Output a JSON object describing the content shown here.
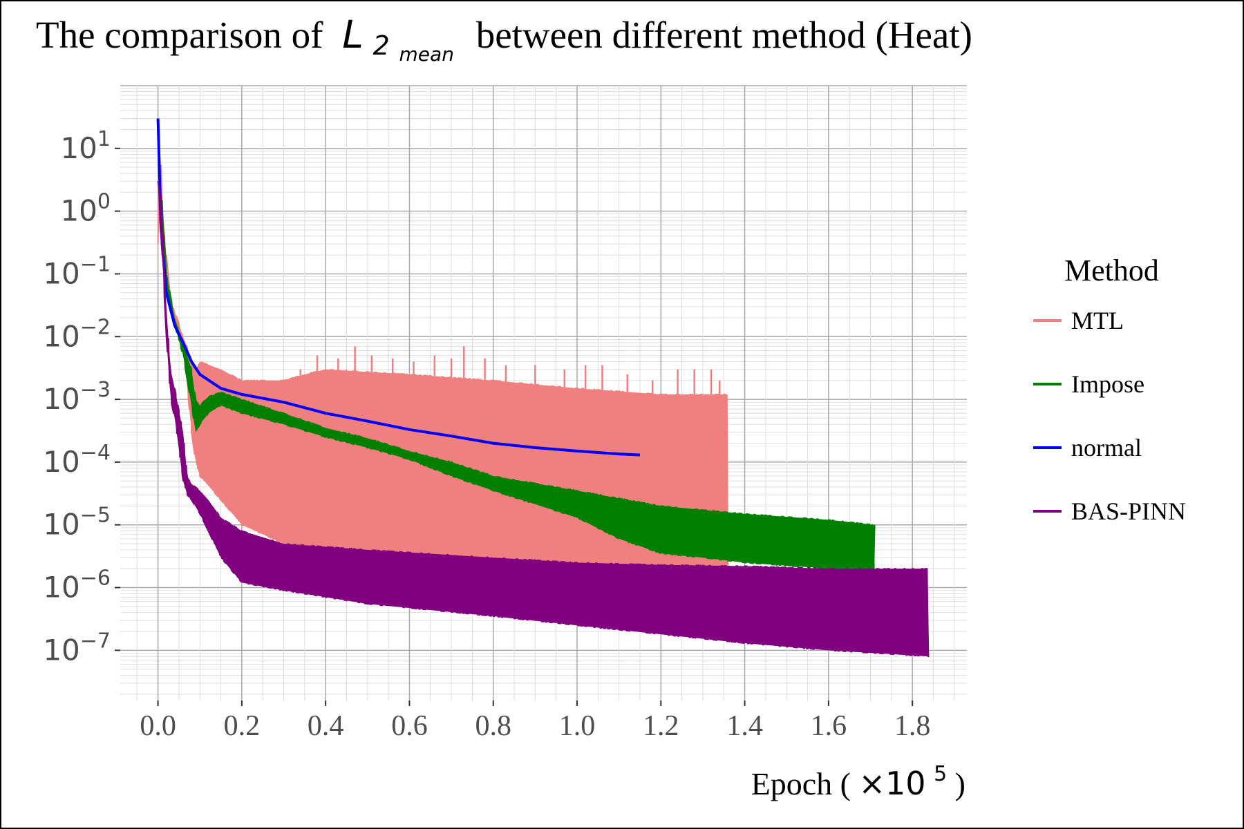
{
  "chart_data": {
    "type": "line",
    "title_prefix": "The comparison of",
    "title_symbol": "L",
    "title_sub1": "2",
    "title_sub2": "mean",
    "title_suffix": "between different method (Heat)",
    "xlabel_text": "Epoch (",
    "xlabel_multiplier": "×10",
    "xlabel_exponent": "5",
    "xlabel_close": ")",
    "x_ticks": [
      0.0,
      0.2,
      0.4,
      0.6,
      0.8,
      1.0,
      1.2,
      1.4,
      1.6,
      1.8
    ],
    "x_tick_labels": [
      "0.0",
      "0.2",
      "0.4",
      "0.6",
      "0.8",
      "1.0",
      "1.2",
      "1.4",
      "1.6",
      "1.8"
    ],
    "xlim": [
      -0.09,
      1.93
    ],
    "y_scale": "log",
    "y_ticks_exp": [
      1,
      0,
      -1,
      -2,
      -3,
      -4,
      -5,
      -6,
      -7
    ],
    "y_tick_labels": [
      {
        "base": "10",
        "exp": "1"
      },
      {
        "base": "10",
        "exp": "0"
      },
      {
        "base": "10",
        "exp": "−1"
      },
      {
        "base": "10",
        "exp": "−2"
      },
      {
        "base": "10",
        "exp": "−3"
      },
      {
        "base": "10",
        "exp": "−4"
      },
      {
        "base": "10",
        "exp": "−5"
      },
      {
        "base": "10",
        "exp": "−6"
      },
      {
        "base": "10",
        "exp": "−7"
      }
    ],
    "ylim_exp": [
      -7.8,
      2.0
    ],
    "grid": true,
    "legend_title": "Method",
    "legend_position": "right",
    "series": [
      {
        "name": "MTL",
        "color": "#f08080",
        "upper_env": [
          [
            0.0,
            0.3
          ],
          [
            0.005,
            30
          ],
          [
            0.01,
            1.0
          ],
          [
            0.03,
            0.04
          ],
          [
            0.06,
            0.01
          ],
          [
            0.09,
            0.003
          ],
          [
            0.1,
            0.004
          ],
          [
            0.15,
            0.003
          ],
          [
            0.2,
            0.002
          ],
          [
            0.3,
            0.002
          ],
          [
            0.35,
            0.0025
          ],
          [
            0.4,
            0.003
          ],
          [
            0.6,
            0.0025
          ],
          [
            0.8,
            0.002
          ],
          [
            1.0,
            0.0015
          ],
          [
            1.2,
            0.0012
          ],
          [
            1.36,
            0.0012
          ]
        ],
        "lower_env": [
          [
            0.0,
            0.3
          ],
          [
            0.005,
            1.0
          ],
          [
            0.03,
            0.03
          ],
          [
            0.06,
            0.008
          ],
          [
            0.08,
            0.0003
          ],
          [
            0.09,
            0.0001
          ],
          [
            0.1,
            6e-05
          ],
          [
            0.15,
            2.5e-05
          ],
          [
            0.2,
            1e-05
          ],
          [
            0.3,
            5e-06
          ],
          [
            0.4,
            4e-06
          ],
          [
            0.6,
            3.5e-06
          ],
          [
            0.8,
            2.5e-06
          ],
          [
            1.0,
            1.8e-06
          ],
          [
            1.2,
            1.5e-06
          ],
          [
            1.36,
            1.2e-06
          ]
        ],
        "spikes": [
          [
            0.34,
            0.003
          ],
          [
            0.38,
            0.005
          ],
          [
            0.43,
            0.0045
          ],
          [
            0.47,
            0.007
          ],
          [
            0.51,
            0.005
          ],
          [
            0.56,
            0.0045
          ],
          [
            0.61,
            0.004
          ],
          [
            0.66,
            0.005
          ],
          [
            0.7,
            0.0045
          ],
          [
            0.73,
            0.007
          ],
          [
            0.78,
            0.0045
          ],
          [
            0.83,
            0.0035
          ],
          [
            0.9,
            0.0035
          ],
          [
            0.97,
            0.003
          ],
          [
            1.02,
            0.0035
          ],
          [
            1.06,
            0.0035
          ],
          [
            1.12,
            0.0025
          ],
          [
            1.18,
            0.002
          ],
          [
            1.24,
            0.003
          ],
          [
            1.28,
            0.003
          ],
          [
            1.32,
            0.003
          ],
          [
            1.34,
            0.002
          ]
        ]
      },
      {
        "name": "Impose",
        "color": "#008000",
        "upper_env": [
          [
            0.0,
            3.0
          ],
          [
            0.01,
            1.5
          ],
          [
            0.02,
            0.1
          ],
          [
            0.04,
            0.02
          ],
          [
            0.06,
            0.008
          ],
          [
            0.08,
            0.003
          ],
          [
            0.09,
            0.001
          ],
          [
            0.1,
            0.0008
          ],
          [
            0.12,
            0.0011
          ],
          [
            0.15,
            0.0013
          ],
          [
            0.2,
            0.001
          ],
          [
            0.3,
            0.0006
          ],
          [
            0.4,
            0.00035
          ],
          [
            0.5,
            0.00024
          ],
          [
            0.6,
            0.00015
          ],
          [
            0.7,
            0.0001
          ],
          [
            0.8,
            6e-05
          ],
          [
            1.0,
            3.5e-05
          ],
          [
            1.2,
            2e-05
          ],
          [
            1.4,
            1.5e-05
          ],
          [
            1.6,
            1.2e-05
          ],
          [
            1.71,
            1e-05
          ]
        ],
        "lower_env": [
          [
            0.0,
            3.0
          ],
          [
            0.01,
            1.0
          ],
          [
            0.02,
            0.05
          ],
          [
            0.04,
            0.015
          ],
          [
            0.06,
            0.005
          ],
          [
            0.08,
            0.0008
          ],
          [
            0.09,
            0.0003
          ],
          [
            0.1,
            0.0004
          ],
          [
            0.12,
            0.0006
          ],
          [
            0.15,
            0.0008
          ],
          [
            0.2,
            0.0006
          ],
          [
            0.3,
            0.0004
          ],
          [
            0.4,
            0.00025
          ],
          [
            0.5,
            0.00017
          ],
          [
            0.6,
            0.00011
          ],
          [
            0.7,
            6e-05
          ],
          [
            0.8,
            3.5e-05
          ],
          [
            1.0,
            1.3e-05
          ],
          [
            1.1,
            6e-06
          ],
          [
            1.2,
            3.5e-06
          ],
          [
            1.3,
            3e-06
          ],
          [
            1.4,
            2.5e-06
          ],
          [
            1.6,
            2e-06
          ],
          [
            1.71,
            2e-06
          ]
        ]
      },
      {
        "name": "normal",
        "color": "#0000ff",
        "points": [
          [
            0.0,
            30
          ],
          [
            0.005,
            2.0
          ],
          [
            0.01,
            0.3
          ],
          [
            0.02,
            0.05
          ],
          [
            0.04,
            0.015
          ],
          [
            0.06,
            0.008
          ],
          [
            0.08,
            0.004
          ],
          [
            0.1,
            0.0025
          ],
          [
            0.15,
            0.0015
          ],
          [
            0.2,
            0.0012
          ],
          [
            0.3,
            0.0009
          ],
          [
            0.4,
            0.0006
          ],
          [
            0.5,
            0.00045
          ],
          [
            0.6,
            0.00033
          ],
          [
            0.7,
            0.00026
          ],
          [
            0.8,
            0.0002
          ],
          [
            0.9,
            0.00017
          ],
          [
            1.0,
            0.00015
          ],
          [
            1.1,
            0.000135
          ],
          [
            1.15,
            0.00013
          ]
        ]
      },
      {
        "name": "BAS-PINN",
        "color": "#800080",
        "upper_env": [
          [
            0.0,
            3.0
          ],
          [
            0.01,
            1.0
          ],
          [
            0.02,
            0.03
          ],
          [
            0.03,
            0.003
          ],
          [
            0.04,
            0.0015
          ],
          [
            0.06,
            0.0003
          ],
          [
            0.07,
            6e-05
          ],
          [
            0.08,
            4.5e-05
          ],
          [
            0.1,
            3.5e-05
          ],
          [
            0.12,
            2.5e-05
          ],
          [
            0.15,
            1.3e-05
          ],
          [
            0.2,
            8e-06
          ],
          [
            0.3,
            5e-06
          ],
          [
            0.5,
            4e-06
          ],
          [
            0.8,
            3e-06
          ],
          [
            1.0,
            2.5e-06
          ],
          [
            1.2,
            2.3e-06
          ],
          [
            1.4,
            2.2e-06
          ],
          [
            1.6,
            2e-06
          ],
          [
            1.84,
            2e-06
          ]
        ],
        "lower_env": [
          [
            0.0,
            1.0
          ],
          [
            0.01,
            0.2
          ],
          [
            0.02,
            0.01
          ],
          [
            0.03,
            0.001
          ],
          [
            0.04,
            0.0005
          ],
          [
            0.06,
            5e-05
          ],
          [
            0.07,
            3e-05
          ],
          [
            0.08,
            2.5e-05
          ],
          [
            0.1,
            1.5e-05
          ],
          [
            0.12,
            8e-06
          ],
          [
            0.15,
            3e-06
          ],
          [
            0.2,
            1.2e-06
          ],
          [
            0.3,
            9e-07
          ],
          [
            0.5,
            5.5e-07
          ],
          [
            0.8,
            3.5e-07
          ],
          [
            1.0,
            2.5e-07
          ],
          [
            1.2,
            1.8e-07
          ],
          [
            1.4,
            1.3e-07
          ],
          [
            1.6,
            1e-07
          ],
          [
            1.84,
            8e-08
          ]
        ]
      }
    ]
  }
}
